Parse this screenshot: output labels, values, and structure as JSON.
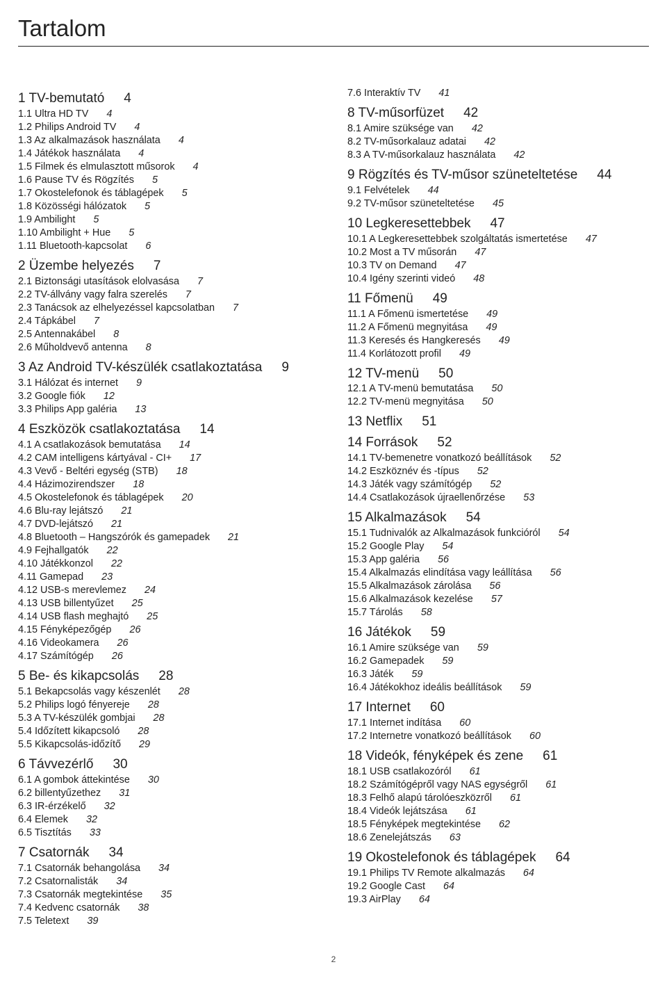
{
  "title": "Tartalom",
  "pageNumber": "2",
  "style": {
    "background": "#ffffff",
    "text_color": "#222222",
    "title_fontsize": 33,
    "heading_fontsize": 19,
    "entry_fontsize": 14.4,
    "rule_color": "#222222"
  },
  "leftSections": [
    {
      "num": "1",
      "title": "TV-bemutató",
      "page": "4",
      "items": [
        {
          "num": "1.1",
          "title": "Ultra HD TV",
          "page": "4"
        },
        {
          "num": "1.2",
          "title": "Philips Android TV",
          "page": "4"
        },
        {
          "num": "1.3",
          "title": "Az alkalmazások használata",
          "page": "4"
        },
        {
          "num": "1.4",
          "title": "Játékok használata",
          "page": "4"
        },
        {
          "num": "1.5",
          "title": "Filmek és elmulasztott műsorok",
          "page": "4"
        },
        {
          "num": "1.6",
          "title": "Pause TV és Rögzítés",
          "page": "5"
        },
        {
          "num": "1.7",
          "title": "Okostelefonok és táblagépek",
          "page": "5"
        },
        {
          "num": "1.8",
          "title": "Közösségi hálózatok",
          "page": "5"
        },
        {
          "num": "1.9",
          "title": "Ambilight",
          "page": "5"
        },
        {
          "num": "1.10",
          "title": "Ambilight + Hue",
          "page": "5"
        },
        {
          "num": "1.11",
          "title": "Bluetooth-kapcsolat",
          "page": "6"
        }
      ]
    },
    {
      "num": "2",
      "title": "Üzembe helyezés",
      "page": "7",
      "items": [
        {
          "num": "2.1",
          "title": "Biztonsági utasítások elolvasása",
          "page": "7"
        },
        {
          "num": "2.2",
          "title": "TV-állvány vagy falra szerelés",
          "page": "7"
        },
        {
          "num": "2.3",
          "title": "Tanácsok az elhelyezéssel kapcsolatban",
          "page": "7"
        },
        {
          "num": "2.4",
          "title": "Tápkábel",
          "page": "7"
        },
        {
          "num": "2.5",
          "title": "Antennakábel",
          "page": "8"
        },
        {
          "num": "2.6",
          "title": "Műholdvevő antenna",
          "page": "8"
        }
      ]
    },
    {
      "num": "3",
      "title": "Az Android TV-készülék csatlakoztatása",
      "page": "9",
      "items": [
        {
          "num": "3.1",
          "title": "Hálózat és internet",
          "page": "9"
        },
        {
          "num": "3.2",
          "title": "Google fiók",
          "page": "12"
        },
        {
          "num": "3.3",
          "title": "Philips App galéria",
          "page": "13"
        }
      ]
    },
    {
      "num": "4",
      "title": "Eszközök csatlakoztatása",
      "page": "14",
      "items": [
        {
          "num": "4.1",
          "title": "A csatlakozások bemutatása",
          "page": "14"
        },
        {
          "num": "4.2",
          "title": "CAM intelligens kártyával - CI+",
          "page": "17"
        },
        {
          "num": "4.3",
          "title": "Vevő - Beltéri egység (STB)",
          "page": "18"
        },
        {
          "num": "4.4",
          "title": "Házimozirendszer",
          "page": "18"
        },
        {
          "num": "4.5",
          "title": "Okostelefonok és táblagépek",
          "page": "20"
        },
        {
          "num": "4.6",
          "title": "Blu-ray lejátszó",
          "page": "21"
        },
        {
          "num": "4.7",
          "title": "DVD-lejátszó",
          "page": "21"
        },
        {
          "num": "4.8",
          "title": "Bluetooth – Hangszórók és gamepadek",
          "page": "21"
        },
        {
          "num": "4.9",
          "title": "Fejhallgatók",
          "page": "22"
        },
        {
          "num": "4.10",
          "title": "Játékkonzol",
          "page": "22"
        },
        {
          "num": "4.11",
          "title": "Gamepad",
          "page": "23"
        },
        {
          "num": "4.12",
          "title": "USB-s merevlemez",
          "page": "24"
        },
        {
          "num": "4.13",
          "title": "USB billentyűzet",
          "page": "25"
        },
        {
          "num": "4.14",
          "title": "USB flash meghajtó",
          "page": "25"
        },
        {
          "num": "4.15",
          "title": "Fényképezőgép",
          "page": "26"
        },
        {
          "num": "4.16",
          "title": "Videokamera",
          "page": "26"
        },
        {
          "num": "4.17",
          "title": "Számítógép",
          "page": "26"
        }
      ]
    },
    {
      "num": "5",
      "title": "Be- és kikapcsolás",
      "page": "28",
      "items": [
        {
          "num": "5.1",
          "title": "Bekapcsolás vagy készenlét",
          "page": "28"
        },
        {
          "num": "5.2",
          "title": "Philips logó fényereje",
          "page": "28"
        },
        {
          "num": "5.3",
          "title": "A TV-készülék gombjai",
          "page": "28"
        },
        {
          "num": "5.4",
          "title": "Időzített kikapcsoló",
          "page": "28"
        },
        {
          "num": "5.5",
          "title": "Kikapcsolás-időzítő",
          "page": "29"
        }
      ]
    },
    {
      "num": "6",
      "title": "Távvezérlő",
      "page": "30",
      "items": [
        {
          "num": "6.1",
          "title": "A gombok áttekintése",
          "page": "30"
        },
        {
          "num": "6.2",
          "title": "billentyűzethez",
          "page": "31"
        },
        {
          "num": "6.3",
          "title": "IR-érzékelő",
          "page": "32"
        },
        {
          "num": "6.4",
          "title": "Elemek",
          "page": "32"
        },
        {
          "num": "6.5",
          "title": "Tisztítás",
          "page": "33"
        }
      ]
    },
    {
      "num": "7",
      "title": "Csatornák",
      "page": "34",
      "items": [
        {
          "num": "7.1",
          "title": "Csatornák behangolása",
          "page": "34"
        },
        {
          "num": "7.2",
          "title": "Csatornalisták",
          "page": "34"
        },
        {
          "num": "7.3",
          "title": "Csatornák megtekintése",
          "page": "35"
        },
        {
          "num": "7.4",
          "title": "Kedvenc csatornák",
          "page": "38"
        },
        {
          "num": "7.5",
          "title": "Teletext",
          "page": "39"
        }
      ]
    }
  ],
  "rightSections": [
    {
      "isEntryOnly": true,
      "items": [
        {
          "num": "7.6",
          "title": "Interaktív TV",
          "page": "41"
        }
      ]
    },
    {
      "num": "8",
      "title": "TV-műsorfüzet",
      "page": "42",
      "items": [
        {
          "num": "8.1",
          "title": "Amire szüksége van",
          "page": "42"
        },
        {
          "num": "8.2",
          "title": "TV-műsorkalauz adatai",
          "page": "42"
        },
        {
          "num": "8.3",
          "title": "A TV-műsorkalauz használata",
          "page": "42"
        }
      ]
    },
    {
      "num": "9",
      "title": "Rögzítés és TV-műsor szüneteltetése",
      "page": "44",
      "items": [
        {
          "num": "9.1",
          "title": "Felvételek",
          "page": "44"
        },
        {
          "num": "9.2",
          "title": "TV-műsor szüneteltetése",
          "page": "45"
        }
      ]
    },
    {
      "num": "10",
      "title": "Legkeresettebbek",
      "page": "47",
      "items": [
        {
          "num": "10.1",
          "title": "A Legkeresettebbek szolgáltatás ismertetése",
          "page": "47"
        },
        {
          "num": "10.2",
          "title": "Most a TV műsorán",
          "page": "47"
        },
        {
          "num": "10.3",
          "title": "TV on Demand",
          "page": "47"
        },
        {
          "num": "10.4",
          "title": "Igény szerinti videó",
          "page": "48"
        }
      ]
    },
    {
      "num": "11",
      "title": "Főmenü",
      "page": "49",
      "items": [
        {
          "num": "11.1",
          "title": "A Főmenü ismertetése",
          "page": "49"
        },
        {
          "num": "11.2",
          "title": "A Főmenü megnyitása",
          "page": "49"
        },
        {
          "num": "11.3",
          "title": "Keresés és Hangkeresés",
          "page": "49"
        },
        {
          "num": "11.4",
          "title": "Korlátozott profil",
          "page": "49"
        }
      ]
    },
    {
      "num": "12",
      "title": "TV-menü",
      "page": "50",
      "items": [
        {
          "num": "12.1",
          "title": "A TV-menü bemutatása",
          "page": "50"
        },
        {
          "num": "12.2",
          "title": "TV-menü megnyitása",
          "page": "50"
        }
      ]
    },
    {
      "num": "13",
      "title": "Netflix",
      "page": "51",
      "items": []
    },
    {
      "num": "14",
      "title": "Források",
      "page": "52",
      "items": [
        {
          "num": "14.1",
          "title": "TV-bemenetre vonatkozó beállítások",
          "page": "52"
        },
        {
          "num": "14.2",
          "title": "Eszköznév és -típus",
          "page": "52"
        },
        {
          "num": "14.3",
          "title": "Játék vagy számítógép",
          "page": "52"
        },
        {
          "num": "14.4",
          "title": "Csatlakozások újraellenőrzése",
          "page": "53"
        }
      ]
    },
    {
      "num": "15",
      "title": "Alkalmazások",
      "page": "54",
      "items": [
        {
          "num": "15.1",
          "title": "Tudnivalók az Alkalmazások funkcióról",
          "page": "54"
        },
        {
          "num": "15.2",
          "title": "Google Play",
          "page": "54"
        },
        {
          "num": "15.3",
          "title": "App galéria",
          "page": "56"
        },
        {
          "num": "15.4",
          "title": "Alkalmazás elindítása vagy leállítása",
          "page": "56"
        },
        {
          "num": "15.5",
          "title": "Alkalmazások zárolása",
          "page": "56"
        },
        {
          "num": "15.6",
          "title": "Alkalmazások kezelése",
          "page": "57"
        },
        {
          "num": "15.7",
          "title": "Tárolás",
          "page": "58"
        }
      ]
    },
    {
      "num": "16",
      "title": "Játékok",
      "page": "59",
      "items": [
        {
          "num": "16.1",
          "title": "Amire szüksége van",
          "page": "59"
        },
        {
          "num": "16.2",
          "title": "Gamepadek",
          "page": "59"
        },
        {
          "num": "16.3",
          "title": "Játék",
          "page": "59"
        },
        {
          "num": "16.4",
          "title": "Játékokhoz ideális beállítások",
          "page": "59"
        }
      ]
    },
    {
      "num": "17",
      "title": "Internet",
      "page": "60",
      "items": [
        {
          "num": "17.1",
          "title": "Internet indítása",
          "page": "60"
        },
        {
          "num": "17.2",
          "title": "Internetre vonatkozó beállítások",
          "page": "60"
        }
      ]
    },
    {
      "num": "18",
      "title": "Videók, fényképek és zene",
      "page": "61",
      "items": [
        {
          "num": "18.1",
          "title": "USB csatlakozóról",
          "page": "61"
        },
        {
          "num": "18.2",
          "title": "Számítógépről vagy NAS egységről",
          "page": "61"
        },
        {
          "num": "18.3",
          "title": "Felhő alapú tárolóeszközről",
          "page": "61"
        },
        {
          "num": "18.4",
          "title": "Videók lejátszása",
          "page": "61"
        },
        {
          "num": "18.5",
          "title": "Fényképek megtekintése",
          "page": "62"
        },
        {
          "num": "18.6",
          "title": "Zenelejátszás",
          "page": "63"
        }
      ]
    },
    {
      "num": "19",
      "title": "Okostelefonok és táblagépek",
      "page": "64",
      "items": [
        {
          "num": "19.1",
          "title": "Philips TV Remote alkalmazás",
          "page": "64"
        },
        {
          "num": "19.2",
          "title": "Google Cast",
          "page": "64"
        },
        {
          "num": "19.3",
          "title": "AirPlay",
          "page": "64"
        }
      ]
    }
  ]
}
